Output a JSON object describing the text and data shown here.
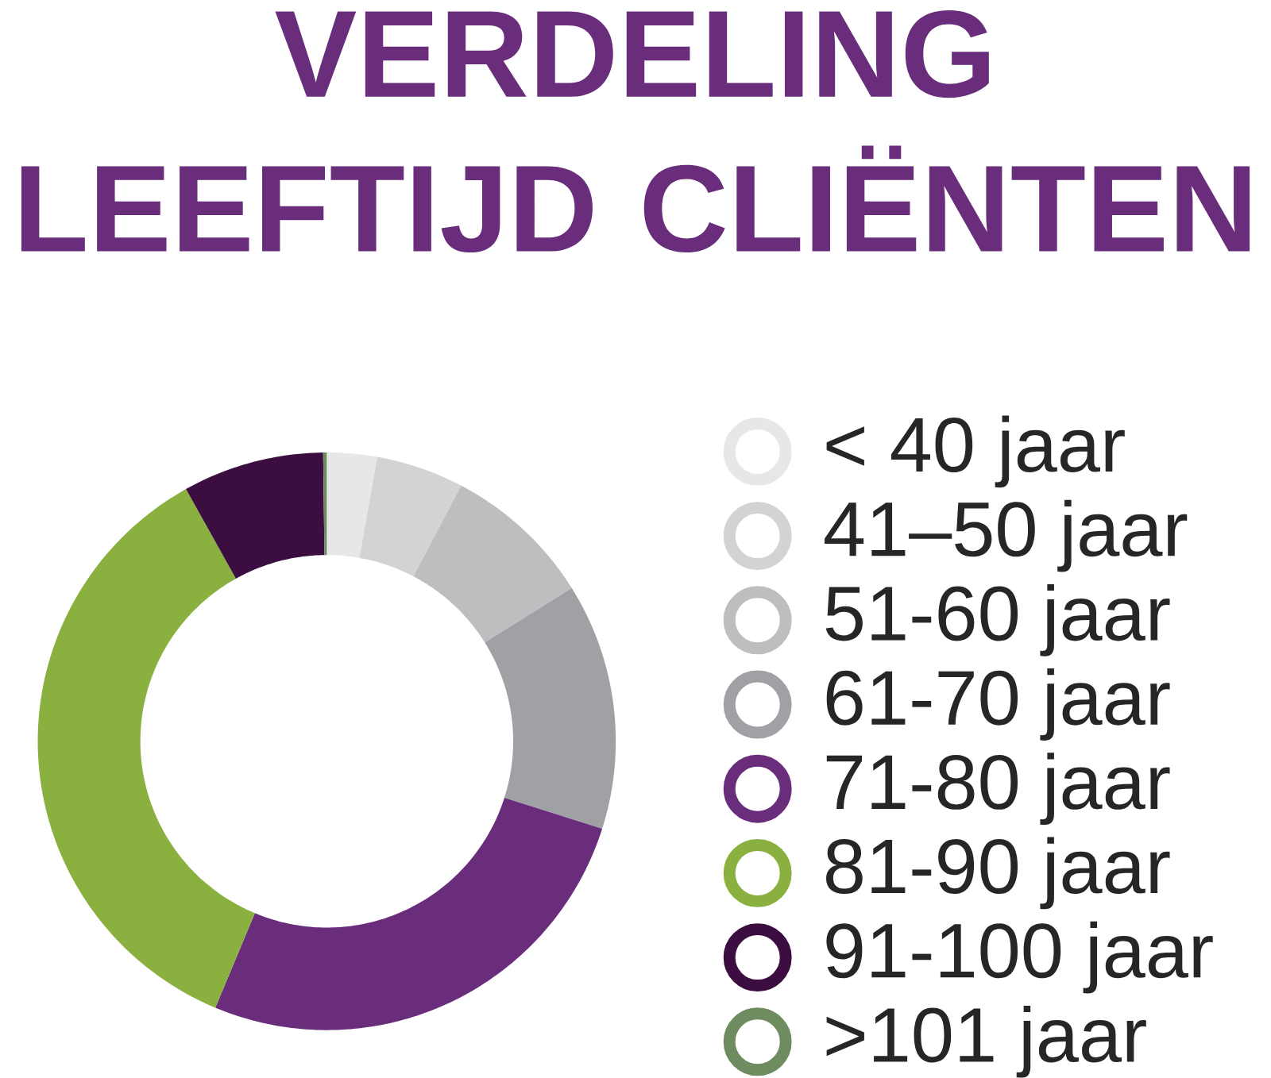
{
  "chart_data": {
    "type": "donut",
    "title": "VERDELING LEEFTIJD CLIËNTEN",
    "categories": [
      "< 40 jaar",
      "41–50 jaar",
      "51-60 jaar",
      "61-70 jaar",
      "71-80 jaar",
      "81-90 jaar",
      "91-100 jaar",
      ">101 jaar"
    ],
    "values": [
      2.8,
      4.9,
      8.4,
      13.8,
      26.4,
      35.6,
      7.9,
      0.2
    ],
    "colors": [
      "#e6e7e8",
      "#d1d3d4",
      "#bcbec0",
      "#a0a1a5",
      "#6a2d7b",
      "#8ab03f",
      "#3b0d40",
      "#6e8c5f"
    ],
    "legend": "right"
  }
}
